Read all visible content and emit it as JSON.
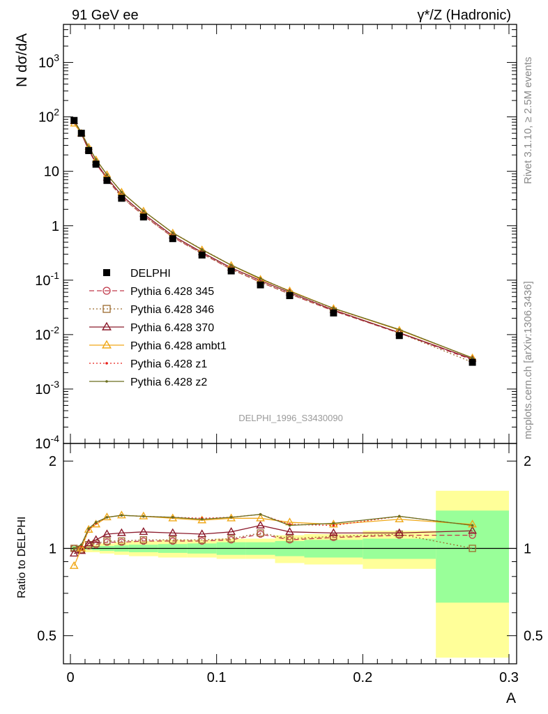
{
  "header": {
    "left_title": "91 GeV ee",
    "right_title": "γ*/Z (Hadronic)"
  },
  "side_text": {
    "rivet": "Rivet 3.1.10, ≥ 2.5M events",
    "mcplots": "mcplots.cern.ch [arXiv:1306.3436]"
  },
  "watermark": "DELPHI_1996_S3430090",
  "chart_data": [
    {
      "type": "line",
      "scale": "log",
      "ylabel": "N dσ/dA",
      "xlabel": "",
      "xlim": [
        0,
        0.3
      ],
      "ylim": [
        0.0001,
        5000
      ],
      "y_tick_labels": [
        "10^-4",
        "10^-3",
        "10^-2",
        "10^-1",
        "1",
        "10",
        "10^2",
        "10^3"
      ],
      "x": [
        0.0025,
        0.0075,
        0.0125,
        0.0175,
        0.025,
        0.035,
        0.05,
        0.07,
        0.09,
        0.11,
        0.13,
        0.15,
        0.18,
        0.225,
        0.275
      ],
      "data_series": {
        "name": "DELPHI",
        "values": [
          86,
          50,
          24,
          13.5,
          6.8,
          3.2,
          1.45,
          0.58,
          0.29,
          0.148,
          0.082,
          0.052,
          0.025,
          0.0096,
          0.0031
        ]
      },
      "series": [
        {
          "name": "Pythia 6.428 345",
          "color": "#c0394a",
          "marker": "open-circle",
          "line": "dashed",
          "ratio": [
            1.0,
            0.99,
            1.02,
            1.03,
            1.05,
            1.05,
            1.06,
            1.06,
            1.06,
            1.07,
            1.12,
            1.07,
            1.09,
            1.11,
            1.11
          ]
        },
        {
          "name": "Pythia 6.428 346",
          "color": "#9c6a2e",
          "marker": "open-square",
          "line": "dotted",
          "ratio": [
            1.0,
            0.99,
            1.03,
            1.04,
            1.06,
            1.06,
            1.07,
            1.07,
            1.07,
            1.08,
            1.13,
            1.08,
            1.1,
            1.12,
            1.0
          ]
        },
        {
          "name": "Pythia 6.428 370",
          "color": "#8b1a2b",
          "marker": "open-triangle",
          "line": "solid",
          "ratio": [
            0.96,
            0.98,
            1.04,
            1.07,
            1.12,
            1.13,
            1.14,
            1.13,
            1.12,
            1.14,
            1.2,
            1.14,
            1.13,
            1.13,
            1.15
          ]
        },
        {
          "name": "Pythia 6.428 ambt1",
          "color": "#f0a818",
          "marker": "open-triangle",
          "line": "solid",
          "ratio": [
            0.87,
            1.0,
            1.16,
            1.21,
            1.28,
            1.3,
            1.29,
            1.27,
            1.25,
            1.27,
            1.27,
            1.23,
            1.21,
            1.26,
            1.21
          ]
        },
        {
          "name": "Pythia 6.428 z1",
          "color": "#e8201a",
          "marker": "dot",
          "line": "dotted",
          "ratio": [
            1.0,
            1.02,
            1.16,
            1.22,
            1.28,
            1.3,
            1.29,
            1.28,
            1.27,
            1.28,
            1.31,
            1.21,
            1.2,
            1.29,
            1.2
          ]
        },
        {
          "name": "Pythia 6.428 z2",
          "color": "#6b6e1e",
          "marker": "dot",
          "line": "solid",
          "ratio": [
            1.0,
            1.03,
            1.17,
            1.23,
            1.28,
            1.3,
            1.29,
            1.28,
            1.26,
            1.28,
            1.31,
            1.2,
            1.22,
            1.29,
            1.2
          ]
        }
      ]
    },
    {
      "type": "line",
      "scale": "log",
      "ylabel": "Ratio to DELPHI",
      "xlabel": "A",
      "xlim": [
        0,
        0.3
      ],
      "ylim": [
        0.4,
        2.3
      ],
      "y_ticks": [
        0.5,
        1,
        2
      ],
      "y_tick_labels": [
        "0.5",
        "1",
        "2"
      ],
      "x_ticks": [
        0,
        0.1,
        0.2,
        0.3
      ],
      "x_tick_labels": [
        "0",
        "0.1",
        "0.2",
        "0.3"
      ],
      "bin_edges": [
        0,
        0.005,
        0.01,
        0.015,
        0.02,
        0.03,
        0.04,
        0.06,
        0.08,
        0.1,
        0.12,
        0.14,
        0.16,
        0.2,
        0.25,
        0.3
      ],
      "band_stat": [
        0.02,
        0.01,
        0.01,
        0.015,
        0.02,
        0.025,
        0.03,
        0.035,
        0.04,
        0.05,
        0.05,
        0.06,
        0.07,
        0.08,
        0.35
      ],
      "band_total": [
        0.02,
        0.02,
        0.03,
        0.03,
        0.04,
        0.05,
        0.06,
        0.07,
        0.07,
        0.08,
        0.08,
        0.11,
        0.12,
        0.15,
        0.58
      ],
      "band_colors": {
        "stat": "#99ff99",
        "total": "#ffff99"
      }
    }
  ]
}
